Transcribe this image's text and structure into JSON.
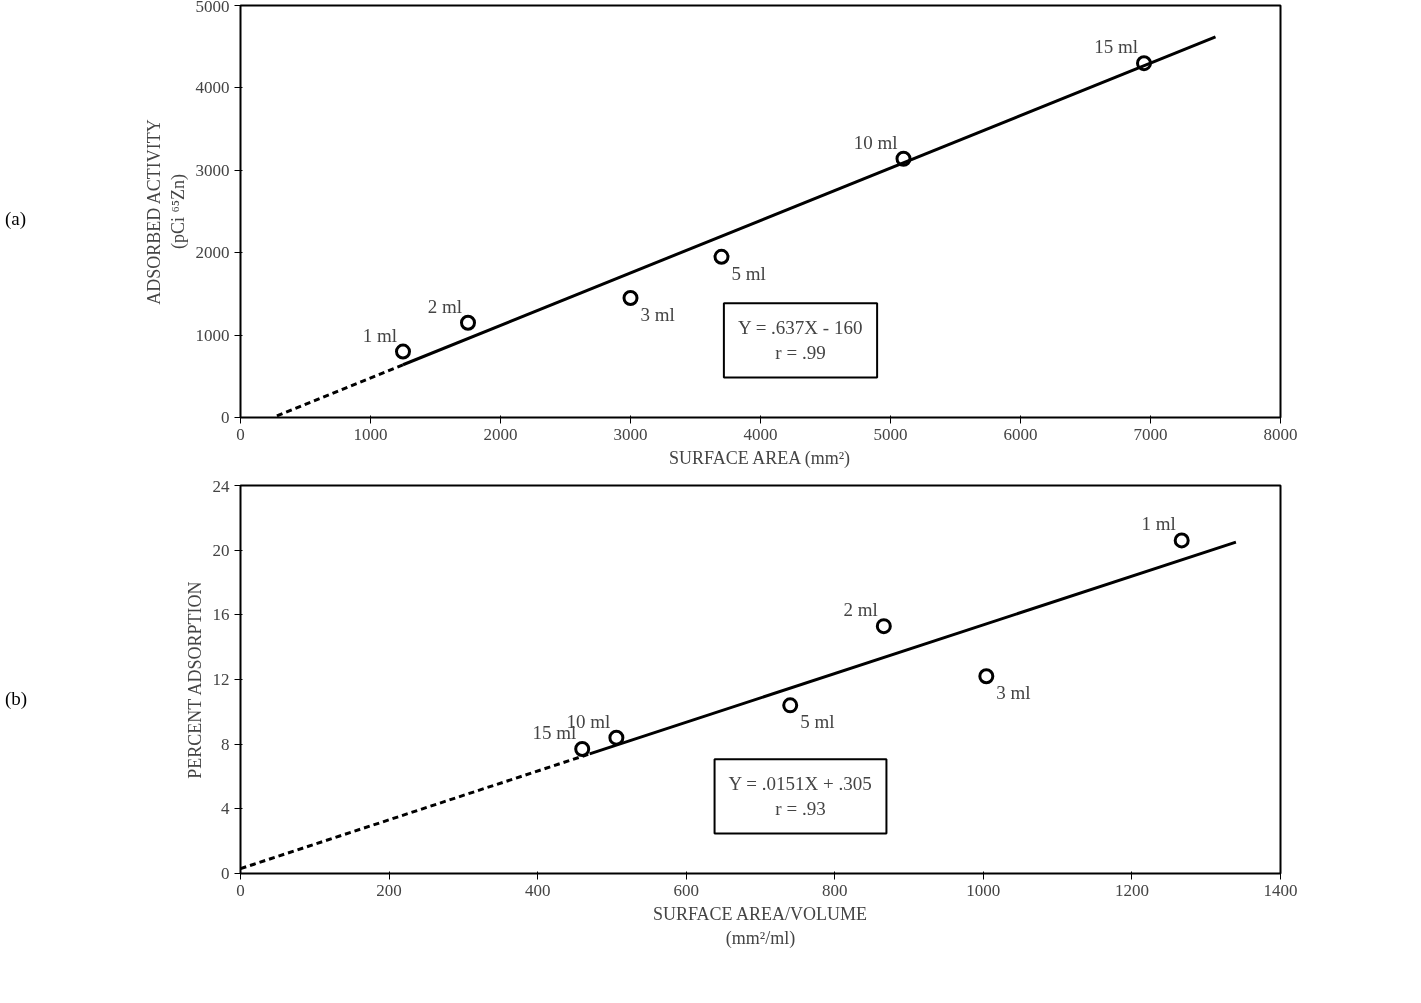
{
  "chart_data": [
    {
      "type": "scatter",
      "xlabel": "SURFACE AREA (mm²)",
      "ylabel": "ADSORBED ACTIVITY\n(pCi ⁶⁵Zn)",
      "xlim": [
        0,
        8000
      ],
      "ylim": [
        0,
        5000
      ],
      "xticks": [
        0,
        1000,
        2000,
        3000,
        4000,
        5000,
        6000,
        7000,
        8000
      ],
      "yticks": [
        0,
        1000,
        2000,
        3000,
        4000,
        5000
      ],
      "grid": false,
      "marker": "circle",
      "series": [
        {
          "type": "scatter",
          "color": "#000000",
          "x": [
            1250,
            1750,
            3000,
            3700,
            5100,
            6950
          ],
          "values": [
            800,
            1150,
            1450,
            1950,
            3140,
            4300
          ]
        },
        {
          "type": "line",
          "color": "#000000",
          "line_style": "dashed",
          "marker": "none",
          "x": [
            280,
            1250
          ],
          "values": [
            20,
            640
          ]
        },
        {
          "type": "line",
          "color": "#000000",
          "line_style": "solid",
          "marker": "none",
          "x": [
            1250,
            7500
          ],
          "values": [
            640,
            4620
          ]
        }
      ],
      "annotations": [
        "(a)",
        "Y = .637X - 160",
        "r = .99",
        {
          "text": "1 ml",
          "x": 1250,
          "y": 800
        },
        {
          "text": "2 ml",
          "x": 1750,
          "y": 1150
        },
        {
          "text": "3 ml",
          "x": 3000,
          "y": 1450
        },
        {
          "text": "5 ml",
          "x": 3700,
          "y": 1950
        },
        {
          "text": "10 ml",
          "x": 5100,
          "y": 3140
        },
        {
          "text": "15 ml",
          "x": 6950,
          "y": 4300
        }
      ]
    },
    {
      "type": "scatter",
      "xlabel": "SURFACE AREA/VOLUME\n(mm²/ml)",
      "ylabel": "PERCENT ADSORPTION",
      "xlim": [
        0,
        1400
      ],
      "ylim": [
        0,
        24
      ],
      "xticks": [
        0,
        200,
        400,
        600,
        800,
        1000,
        1200,
        1400
      ],
      "yticks": [
        0,
        4,
        8,
        12,
        16,
        20,
        24
      ],
      "grid": false,
      "marker": "circle",
      "series": [
        {
          "type": "scatter",
          "color": "#000000",
          "x": [
            1267,
            866,
            1004,
            740,
            506,
            460
          ],
          "values": [
            20.6,
            15.3,
            12.2,
            10.4,
            8.4,
            7.7
          ]
        },
        {
          "type": "line",
          "color": "#000000",
          "line_style": "dashed",
          "marker": "none",
          "x": [
            0,
            470
          ],
          "values": [
            0.3,
            7.4
          ]
        },
        {
          "type": "line",
          "color": "#000000",
          "line_style": "solid",
          "marker": "none",
          "x": [
            470,
            1340
          ],
          "values": [
            7.4,
            20.5
          ]
        }
      ],
      "annotations": [
        "(b)",
        "Y = .0151X + .305",
        "r = .93",
        {
          "text": "1 ml",
          "x": 1267,
          "y": 20.6
        },
        {
          "text": "2 ml",
          "x": 866,
          "y": 15.3
        },
        {
          "text": "3 ml",
          "x": 1004,
          "y": 12.2
        },
        {
          "text": "5 ml",
          "x": 740,
          "y": 10.4
        },
        {
          "text": "10 ml",
          "x": 506,
          "y": 8.4
        },
        {
          "text": "15 ml",
          "x": 460,
          "y": 7.7
        }
      ]
    }
  ]
}
